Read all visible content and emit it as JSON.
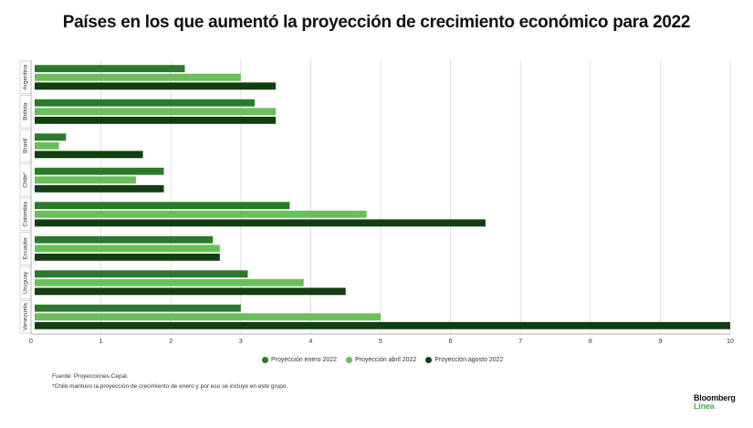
{
  "chart_data": {
    "type": "bar",
    "orientation": "horizontal",
    "title": "Países en los que aumentó la proyección de crecimiento económico para 2022",
    "categories": [
      "Argentina",
      "Bolivia",
      "Brasil",
      "Chile*",
      "Colombia",
      "Ecuador",
      "Uruguay",
      "Venezuela"
    ],
    "series": [
      {
        "name": "Proyección enero 2022",
        "color": "#2b7a2b",
        "values": [
          2.2,
          3.2,
          0.5,
          1.9,
          3.7,
          2.6,
          3.1,
          3.0
        ]
      },
      {
        "name": "Proyección abril 2022",
        "color": "#6abf5a",
        "values": [
          3.0,
          3.5,
          0.4,
          1.5,
          4.8,
          2.7,
          3.9,
          5.0
        ]
      },
      {
        "name": "Proyección agosto 2022",
        "color": "#133d13",
        "values": [
          3.5,
          3.5,
          1.6,
          1.9,
          6.5,
          2.7,
          4.5,
          10.0
        ]
      }
    ],
    "xlim": [
      0,
      10
    ],
    "xticks": [
      "0",
      "1",
      "2",
      "3",
      "4",
      "5",
      "6",
      "7",
      "8",
      "9",
      "10"
    ],
    "grid": true,
    "legend": "bottom"
  },
  "notes": {
    "source": "Fuente: Proyecciones Cepal.",
    "footnote": "*Chile mantuvo la proyección de crecimiento de enero y por eso se incluye en este grupo."
  },
  "brand": {
    "line1": "Bloomberg",
    "line2": "Línea"
  }
}
